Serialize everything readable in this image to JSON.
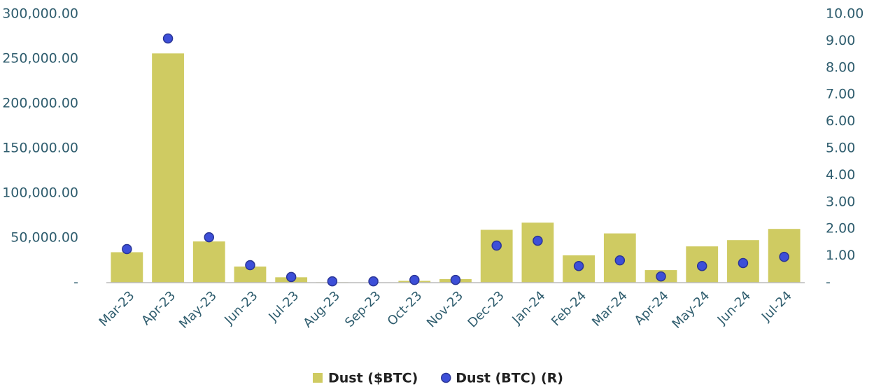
{
  "chart_data": {
    "type": "bar_dot",
    "categories": [
      "Mar-23",
      "Apr-23",
      "May-23",
      "Jun-23",
      "Jul-23",
      "Aug-23",
      "Sep-23",
      "Oct-23",
      "Nov-23",
      "Dec-23",
      "Jan-24",
      "Feb-24",
      "Mar-24",
      "Apr-24",
      "May-24",
      "Jun-24",
      "Jul-24"
    ],
    "series": [
      {
        "name": "Dust ($BTC)",
        "color": "#cfcb62",
        "values": [
          34000,
          256000,
          46000,
          18000,
          6000,
          500,
          300,
          2000,
          4000,
          59000,
          67000,
          30500,
          55000,
          14000,
          40500,
          47500,
          60000
        ]
      },
      {
        "name": "Dust (BTC) (R)",
        "color": "#3d4fd8",
        "axis": "y2",
        "values": [
          1.25,
          9.09,
          1.69,
          0.65,
          0.21,
          0.05,
          0.05,
          0.1,
          0.1,
          1.38,
          1.56,
          0.62,
          0.83,
          0.23,
          0.62,
          0.73,
          0.96
        ]
      }
    ],
    "ylim": [
      0,
      300000
    ],
    "yticks": [
      {
        "value": 0,
        "label": "-"
      },
      {
        "value": 50000,
        "label": "50,000.00"
      },
      {
        "value": 100000,
        "label": "100,000.00"
      },
      {
        "value": 150000,
        "label": "150,000.00"
      },
      {
        "value": 200000,
        "label": "200,000.00"
      },
      {
        "value": 250000,
        "label": "250,000.00"
      },
      {
        "value": 300000,
        "label": "300,000.00"
      }
    ],
    "y2lim": [
      0,
      10
    ],
    "y2ticks": [
      {
        "value": 0,
        "label": "-"
      },
      {
        "value": 1,
        "label": "1.00"
      },
      {
        "value": 2,
        "label": "2.00"
      },
      {
        "value": 3,
        "label": "3.00"
      },
      {
        "value": 4,
        "label": "4.00"
      },
      {
        "value": 5,
        "label": "5.00"
      },
      {
        "value": 6,
        "label": "6.00"
      },
      {
        "value": 7,
        "label": "7.00"
      },
      {
        "value": 8,
        "label": "8.00"
      },
      {
        "value": 9,
        "label": "9.00"
      },
      {
        "value": 10,
        "label": "10.00"
      }
    ],
    "grid": false,
    "legend": "bottom"
  }
}
